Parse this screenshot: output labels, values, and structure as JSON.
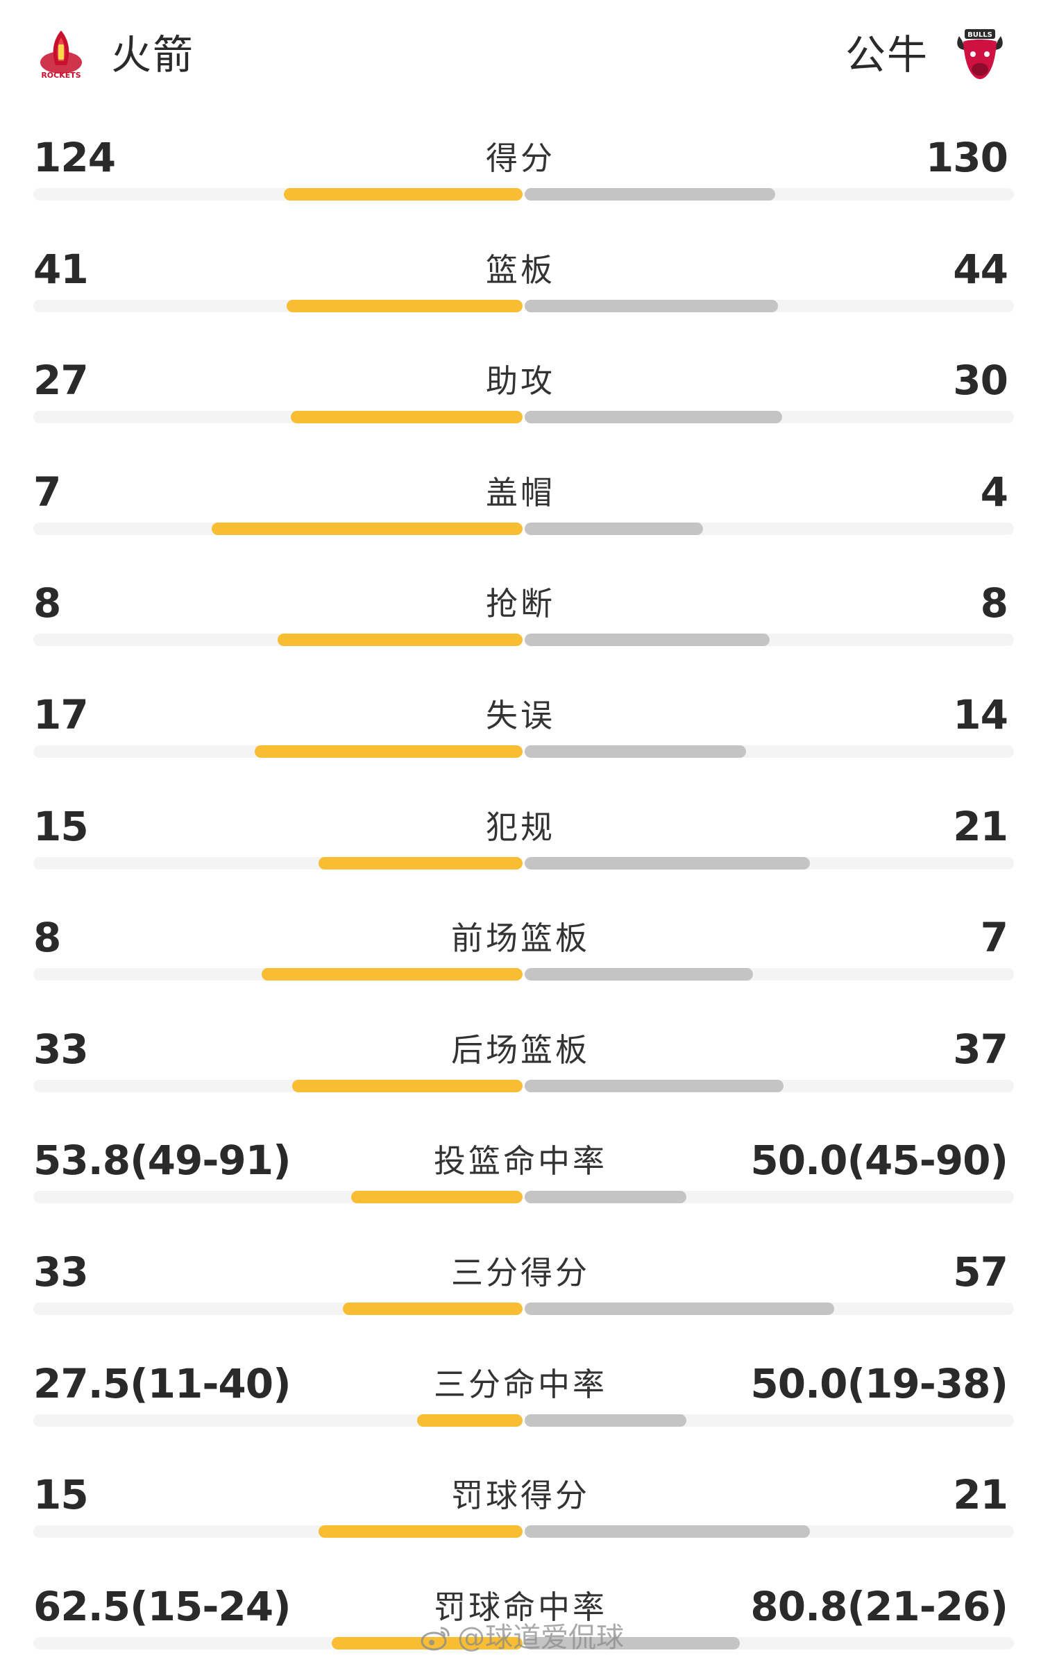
{
  "header": {
    "home_team": "火箭",
    "away_team": "公牛",
    "home_logo_text": "ROCKETS",
    "away_logo_text": "BULLS",
    "home_logo_icon": "rockets-logo-icon",
    "away_logo_icon": "bulls-logo-icon"
  },
  "colors": {
    "home_bar": "#f8bd32",
    "away_bar": "#c4c4c4",
    "track": "#f4f4f4",
    "home_logo": "#c8102e",
    "away_logo": "#ce1141"
  },
  "stats": [
    {
      "label": "得分",
      "home": "124",
      "away": "130",
      "home_share": 0.488,
      "away_share": 0.512
    },
    {
      "label": "篮板",
      "home": "41",
      "away": "44",
      "home_share": 0.482,
      "away_share": 0.518
    },
    {
      "label": "助攻",
      "home": "27",
      "away": "30",
      "home_share": 0.474,
      "away_share": 0.526
    },
    {
      "label": "盖帽",
      "home": "7",
      "away": "4",
      "home_share": 0.636,
      "away_share": 0.364
    },
    {
      "label": "抢断",
      "home": "8",
      "away": "8",
      "home_share": 0.5,
      "away_share": 0.5
    },
    {
      "label": "失误",
      "home": "17",
      "away": "14",
      "home_share": 0.548,
      "away_share": 0.452
    },
    {
      "label": "犯规",
      "home": "15",
      "away": "21",
      "home_share": 0.417,
      "away_share": 0.583
    },
    {
      "label": "前场篮板",
      "home": "8",
      "away": "7",
      "home_share": 0.533,
      "away_share": 0.467
    },
    {
      "label": "后场篮板",
      "home": "33",
      "away": "37",
      "home_share": 0.471,
      "away_share": 0.529
    },
    {
      "label": "投篮命中率",
      "home": "53.8(49-91)",
      "away": "50.0(45-90)",
      "home_share": 0.35,
      "away_share": 0.33
    },
    {
      "label": "三分得分",
      "home": "33",
      "away": "57",
      "home_share": 0.367,
      "away_share": 0.633
    },
    {
      "label": "三分命中率",
      "home": "27.5(11-40)",
      "away": "50.0(19-38)",
      "home_share": 0.215,
      "away_share": 0.33
    },
    {
      "label": "罚球得分",
      "home": "15",
      "away": "21",
      "home_share": 0.417,
      "away_share": 0.583
    },
    {
      "label": "罚球命中率",
      "home": "62.5(15-24)",
      "away": "80.8(21-26)",
      "home_share": 0.39,
      "away_share": 0.44
    }
  ],
  "watermark": {
    "text": "@球道爱侃球",
    "icon": "weibo-icon"
  }
}
